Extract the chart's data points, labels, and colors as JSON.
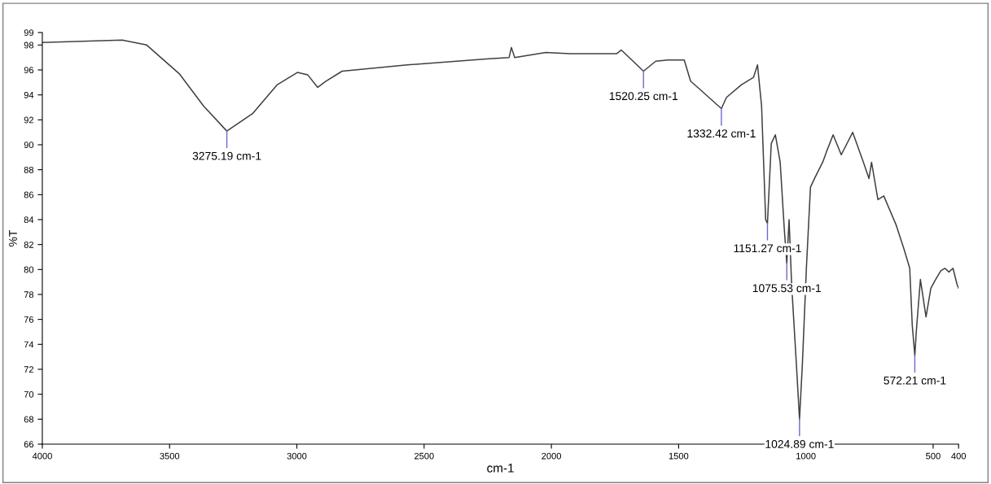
{
  "chart_data": {
    "type": "line",
    "xlabel": "cm-1",
    "ylabel": "%T",
    "series": [
      {
        "color": "#404040",
        "x": [
          4000,
          3686,
          3590,
          3462,
          3366,
          3275,
          3174,
          3078,
          2998,
          2957,
          2918,
          2886,
          2822,
          2566,
          2246,
          2166,
          2157,
          2144,
          2022,
          1926,
          1744,
          1725,
          1638,
          1590,
          1542,
          1478,
          1453,
          1414,
          1332,
          1312,
          1254,
          1206,
          1190,
          1174,
          1158,
          1151,
          1136,
          1120,
          1101,
          1085,
          1075,
          1066,
          1056,
          1037,
          1025,
          1014,
          998,
          982,
          966,
          934,
          918,
          893,
          861,
          816,
          774,
          752,
          742,
          717,
          694,
          646,
          614,
          592,
          582,
          572,
          566,
          550,
          528,
          509,
          493,
          470,
          454,
          438,
          422,
          406,
          400
        ],
        "values": [
          98.2,
          98.4,
          98.0,
          95.7,
          93.1,
          91.1,
          92.5,
          94.8,
          95.8,
          95.6,
          94.6,
          95.1,
          95.9,
          96.4,
          96.9,
          97.0,
          97.8,
          97.0,
          97.4,
          97.3,
          97.3,
          97.6,
          95.9,
          96.7,
          96.8,
          96.8,
          95.1,
          94.4,
          92.9,
          93.8,
          94.8,
          95.4,
          96.4,
          93.1,
          84.0,
          83.7,
          90.1,
          90.8,
          88.6,
          83.3,
          80.5,
          84.0,
          78.8,
          72.3,
          68.0,
          72.3,
          80.1,
          86.6,
          87.3,
          88.6,
          89.5,
          90.8,
          89.2,
          91.0,
          88.6,
          87.3,
          88.6,
          85.6,
          85.9,
          83.6,
          81.6,
          80.1,
          75.5,
          73.1,
          75.1,
          79.2,
          76.2,
          78.5,
          79.1,
          79.9,
          80.1,
          79.8,
          80.1,
          78.8,
          78.5
        ]
      }
    ],
    "xlim": [
      4000,
      400
    ],
    "xticks": [
      4000,
      3500,
      3000,
      2500,
      2000,
      1500,
      1000,
      500,
      400
    ],
    "ylim": [
      66,
      99
    ],
    "yticks": [
      66,
      68,
      70,
      72,
      74,
      76,
      78,
      80,
      82,
      84,
      86,
      88,
      90,
      92,
      94,
      96,
      98,
      99
    ],
    "grid": false,
    "legend": false,
    "marker": "none",
    "line_style": "solid",
    "annotations": [
      {
        "text": "3275.19 cm-1",
        "x": 3275,
        "y": 91.1
      },
      {
        "text": "1520.25 cm-1",
        "x": 1638,
        "y": 95.9
      },
      {
        "text": "1332.42 cm-1",
        "x": 1332,
        "y": 92.9
      },
      {
        "text": "1151.27 cm-1",
        "x": 1151,
        "y": 83.7
      },
      {
        "text": "1075.53 cm-1",
        "x": 1075,
        "y": 80.5
      },
      {
        "text": "1024.89 cm-1",
        "x": 1025,
        "y": 68.0
      },
      {
        "text": "572.21 cm-1",
        "x": 572,
        "y": 73.1
      }
    ]
  }
}
